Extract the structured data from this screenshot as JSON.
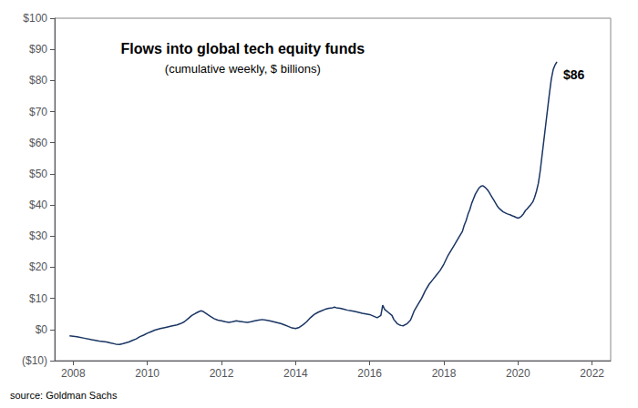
{
  "chart_data": {
    "type": "line",
    "title": "Flows into global tech equity funds",
    "subtitle": "(cumulative weekly, $ billions)",
    "annotation": "$86",
    "source": "source: Goldman Sachs",
    "color": "#1a3564",
    "grid": false,
    "xlim": [
      2007.5,
      2022.5
    ],
    "xticks": [
      2008,
      2010,
      2012,
      2014,
      2016,
      2018,
      2020,
      2022
    ],
    "ylim": [
      -10,
      100
    ],
    "yticks": [
      {
        "value": -10,
        "label": "($10)"
      },
      {
        "value": 0,
        "label": "$0"
      },
      {
        "value": 10,
        "label": "$10"
      },
      {
        "value": 20,
        "label": "$20"
      },
      {
        "value": 30,
        "label": "$30"
      },
      {
        "value": 40,
        "label": "$40"
      },
      {
        "value": 50,
        "label": "$50"
      },
      {
        "value": 60,
        "label": "$60"
      },
      {
        "value": 70,
        "label": "$70"
      },
      {
        "value": 80,
        "label": "$80"
      },
      {
        "value": 90,
        "label": "$90"
      },
      {
        "value": 100,
        "label": "$100"
      }
    ],
    "x": [
      2007.9,
      2008.1,
      2008.3,
      2008.5,
      2008.7,
      2008.9,
      2009.0,
      2009.15,
      2009.25,
      2009.35,
      2009.5,
      2009.6,
      2009.7,
      2009.8,
      2009.9,
      2010.0,
      2010.1,
      2010.2,
      2010.35,
      2010.5,
      2010.65,
      2010.8,
      2010.9,
      2011.0,
      2011.1,
      2011.2,
      2011.3,
      2011.4,
      2011.45,
      2011.5,
      2011.6,
      2011.7,
      2011.8,
      2011.9,
      2012.0,
      2012.1,
      2012.2,
      2012.3,
      2012.4,
      2012.5,
      2012.6,
      2012.7,
      2012.8,
      2012.9,
      2013.0,
      2013.1,
      2013.2,
      2013.3,
      2013.4,
      2013.5,
      2013.6,
      2013.7,
      2013.8,
      2013.9,
      2014.0,
      2014.1,
      2014.2,
      2014.3,
      2014.4,
      2014.5,
      2014.6,
      2014.7,
      2014.8,
      2014.9,
      2015.0,
      2015.05,
      2015.1,
      2015.2,
      2015.3,
      2015.4,
      2015.5,
      2015.6,
      2015.7,
      2015.8,
      2015.9,
      2016.0,
      2016.1,
      2016.2,
      2016.3,
      2016.35,
      2016.4,
      2016.5,
      2016.6,
      2016.65,
      2016.7,
      2016.75,
      2016.8,
      2016.85,
      2016.9,
      2017.0,
      2017.1,
      2017.15,
      2017.2,
      2017.3,
      2017.4,
      2017.5,
      2017.6,
      2017.7,
      2017.8,
      2017.9,
      2018.0,
      2018.1,
      2018.2,
      2018.3,
      2018.4,
      2018.5,
      2018.55,
      2018.6,
      2018.65,
      2018.7,
      2018.75,
      2018.8,
      2018.85,
      2018.9,
      2018.95,
      2019.0,
      2019.05,
      2019.1,
      2019.15,
      2019.2,
      2019.25,
      2019.3,
      2019.35,
      2019.4,
      2019.45,
      2019.5,
      2019.55,
      2019.6,
      2019.65,
      2019.7,
      2019.75,
      2019.8,
      2019.85,
      2019.9,
      2019.95,
      2020.0,
      2020.05,
      2020.1,
      2020.15,
      2020.2,
      2020.25,
      2020.3,
      2020.35,
      2020.4,
      2020.45,
      2020.5,
      2020.55,
      2020.6,
      2020.65,
      2020.7,
      2020.75,
      2020.8,
      2020.85,
      2020.9,
      2020.95,
      2021.0,
      2021.05
    ],
    "values": [
      -2.0,
      -2.3,
      -2.8,
      -3.3,
      -3.7,
      -4.0,
      -4.3,
      -4.7,
      -4.8,
      -4.5,
      -4.0,
      -3.5,
      -3.0,
      -2.3,
      -1.8,
      -1.2,
      -0.7,
      -0.2,
      0.3,
      0.7,
      1.1,
      1.5,
      1.9,
      2.5,
      3.5,
      4.5,
      5.2,
      5.8,
      6.0,
      5.8,
      5.0,
      4.2,
      3.5,
      3.0,
      2.8,
      2.5,
      2.3,
      2.5,
      2.8,
      2.6,
      2.4,
      2.3,
      2.5,
      2.8,
      3.0,
      3.2,
      3.0,
      2.8,
      2.5,
      2.2,
      1.9,
      1.5,
      1.0,
      0.5,
      0.3,
      0.7,
      1.5,
      2.5,
      3.8,
      4.8,
      5.5,
      6.0,
      6.5,
      6.8,
      7.0,
      7.2,
      7.0,
      6.8,
      6.5,
      6.2,
      6.0,
      5.8,
      5.5,
      5.2,
      5.0,
      4.8,
      4.3,
      3.8,
      4.5,
      7.8,
      6.5,
      5.5,
      4.5,
      3.2,
      2.5,
      1.8,
      1.5,
      1.3,
      1.2,
      1.8,
      3.0,
      4.5,
      6.0,
      8.0,
      10.0,
      12.5,
      14.5,
      16.0,
      17.5,
      19.0,
      21.0,
      23.5,
      25.5,
      27.5,
      29.5,
      31.5,
      33.5,
      35.0,
      37.0,
      38.5,
      40.5,
      42.0,
      43.5,
      44.5,
      45.5,
      46.0,
      46.2,
      45.8,
      45.2,
      44.5,
      43.5,
      42.5,
      41.5,
      40.5,
      39.5,
      38.8,
      38.3,
      37.8,
      37.5,
      37.2,
      37.0,
      36.8,
      36.5,
      36.3,
      36.0,
      35.8,
      36.0,
      36.5,
      37.2,
      38.2,
      38.8,
      39.5,
      40.2,
      41.0,
      42.5,
      44.5,
      47.0,
      51.0,
      56.0,
      61.0,
      66.0,
      71.0,
      76.0,
      80.5,
      83.5,
      85.0,
      86.0
    ]
  }
}
